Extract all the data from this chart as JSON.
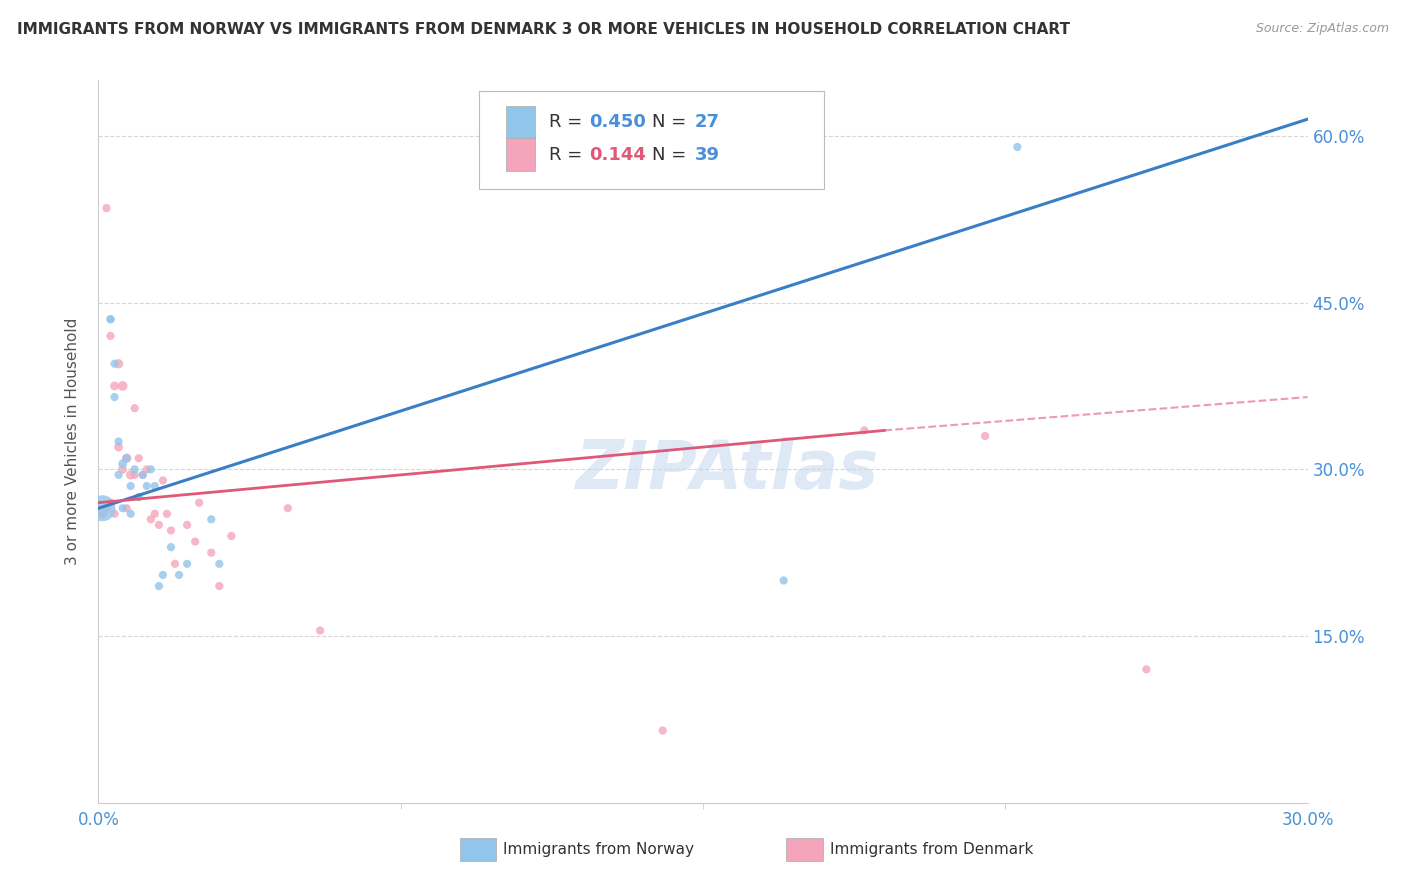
{
  "title": "IMMIGRANTS FROM NORWAY VS IMMIGRANTS FROM DENMARK 3 OR MORE VEHICLES IN HOUSEHOLD CORRELATION CHART",
  "source": "Source: ZipAtlas.com",
  "xlabel_norway": "Immigrants from Norway",
  "xlabel_denmark": "Immigrants from Denmark",
  "ylabel": "3 or more Vehicles in Household",
  "xlim": [
    0.0,
    0.3
  ],
  "ylim": [
    0.0,
    0.65
  ],
  "yticks": [
    0.15,
    0.3,
    0.45,
    0.6
  ],
  "xticks": [
    0.0,
    0.3
  ],
  "norway_R": 0.45,
  "norway_N": 27,
  "denmark_R": 0.144,
  "denmark_N": 39,
  "norway_color": "#92C5EA",
  "denmark_color": "#F4A5BB",
  "norway_line_color": "#3A7EC6",
  "denmark_line_color": "#E05878",
  "background_color": "#FFFFFF",
  "watermark": "ZIPAtlas",
  "norway_x": [
    0.001,
    0.003,
    0.003,
    0.004,
    0.004,
    0.005,
    0.005,
    0.006,
    0.006,
    0.007,
    0.008,
    0.008,
    0.009,
    0.01,
    0.011,
    0.012,
    0.013,
    0.014,
    0.015,
    0.016,
    0.018,
    0.02,
    0.022,
    0.028,
    0.03,
    0.17,
    0.228
  ],
  "norway_y": [
    0.265,
    0.435,
    0.435,
    0.395,
    0.365,
    0.325,
    0.295,
    0.305,
    0.265,
    0.31,
    0.285,
    0.26,
    0.3,
    0.275,
    0.295,
    0.285,
    0.3,
    0.285,
    0.195,
    0.205,
    0.23,
    0.205,
    0.215,
    0.255,
    0.215,
    0.2,
    0.59
  ],
  "norway_size": [
    350,
    35,
    35,
    35,
    35,
    35,
    35,
    40,
    35,
    35,
    35,
    35,
    35,
    35,
    35,
    35,
    35,
    35,
    35,
    35,
    35,
    35,
    35,
    35,
    35,
    35,
    35
  ],
  "denmark_x": [
    0.001,
    0.002,
    0.002,
    0.003,
    0.003,
    0.004,
    0.004,
    0.005,
    0.005,
    0.006,
    0.006,
    0.007,
    0.007,
    0.008,
    0.009,
    0.009,
    0.01,
    0.01,
    0.011,
    0.012,
    0.013,
    0.014,
    0.015,
    0.016,
    0.017,
    0.018,
    0.019,
    0.022,
    0.024,
    0.025,
    0.028,
    0.03,
    0.033,
    0.047,
    0.055,
    0.14,
    0.19,
    0.22,
    0.26
  ],
  "denmark_y": [
    0.26,
    0.535,
    0.265,
    0.42,
    0.27,
    0.375,
    0.26,
    0.395,
    0.32,
    0.375,
    0.3,
    0.31,
    0.265,
    0.295,
    0.355,
    0.295,
    0.31,
    0.275,
    0.295,
    0.3,
    0.255,
    0.26,
    0.25,
    0.29,
    0.26,
    0.245,
    0.215,
    0.25,
    0.235,
    0.27,
    0.225,
    0.195,
    0.24,
    0.265,
    0.155,
    0.065,
    0.335,
    0.33,
    0.12
  ],
  "denmark_size": [
    45,
    35,
    35,
    35,
    35,
    40,
    35,
    45,
    40,
    50,
    40,
    45,
    35,
    45,
    35,
    35,
    35,
    35,
    35,
    35,
    35,
    35,
    35,
    35,
    35,
    35,
    35,
    35,
    35,
    35,
    35,
    35,
    35,
    35,
    35,
    35,
    35,
    35,
    35
  ],
  "norway_line_x0": 0.0,
  "norway_line_y0": 0.265,
  "norway_line_x1": 0.3,
  "norway_line_y1": 0.615,
  "denmark_line_x0": 0.0,
  "denmark_line_y0": 0.27,
  "denmark_line_solid_x1": 0.195,
  "denmark_line_solid_y1": 0.335,
  "denmark_line_dash_x1": 0.3,
  "denmark_line_dash_y1": 0.365
}
